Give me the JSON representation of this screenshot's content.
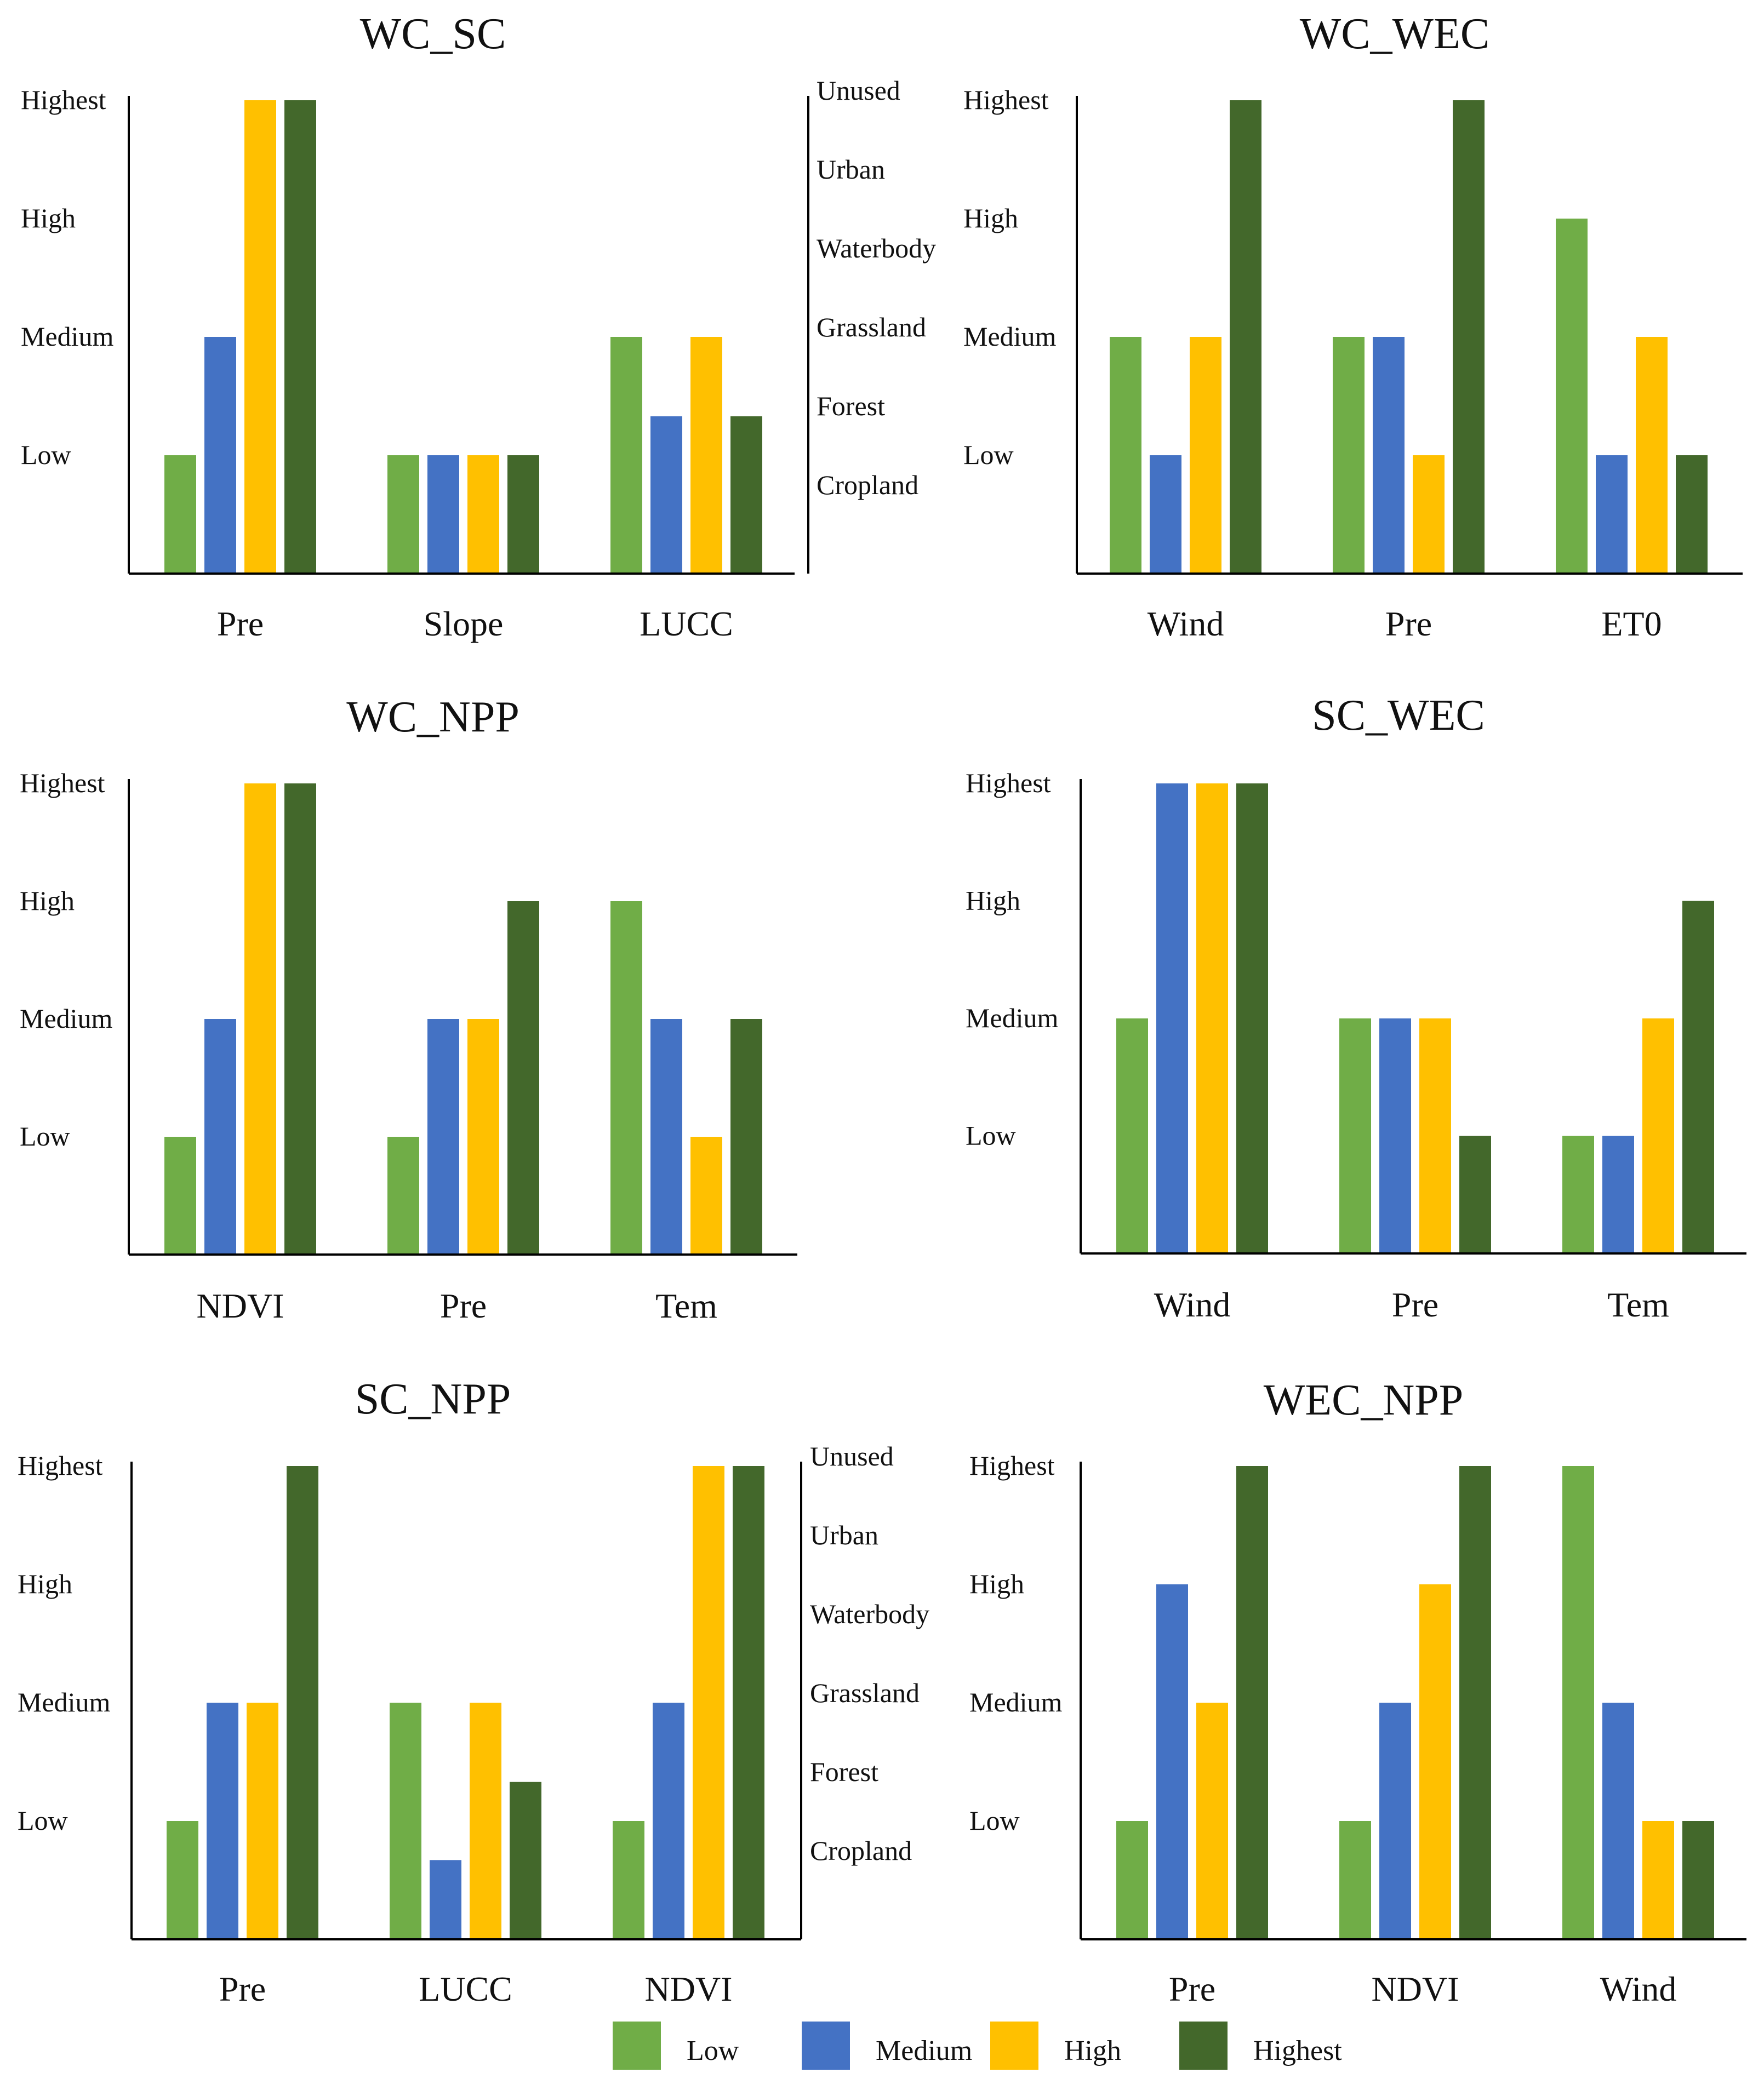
{
  "colors": {
    "Low": "#70ad47",
    "Medium": "#4472c4",
    "High": "#ffc000",
    "Highest": "#43682b",
    "axis": "#000000"
  },
  "legend": {
    "items": [
      "Low",
      "Medium",
      "High",
      "Highest"
    ]
  },
  "chart_data": [
    {
      "type": "bar",
      "title": "WC_SC",
      "categories": [
        "Pre",
        "Slope",
        "LUCC"
      ],
      "y_levels": [
        "Low",
        "Medium",
        "High",
        "Highest"
      ],
      "right_y_levels": [
        "Cropland",
        "Forest",
        "Grassland",
        "Waterbody",
        "Urban",
        "Unused"
      ],
      "ylim": [
        0,
        4
      ],
      "series": [
        {
          "name": "Low",
          "values": [
            1,
            1,
            2
          ]
        },
        {
          "name": "Medium",
          "values": [
            2,
            1,
            1.33
          ]
        },
        {
          "name": "High",
          "values": [
            4,
            1,
            2
          ]
        },
        {
          "name": "Highest",
          "values": [
            4,
            1,
            1.33
          ]
        }
      ]
    },
    {
      "type": "bar",
      "title": "WC_WEC",
      "categories": [
        "Wind",
        "Pre",
        "ET0"
      ],
      "y_levels": [
        "Low",
        "Medium",
        "High",
        "Highest"
      ],
      "ylim": [
        0,
        4
      ],
      "series": [
        {
          "name": "Low",
          "values": [
            2,
            2,
            3
          ]
        },
        {
          "name": "Medium",
          "values": [
            1,
            2,
            1
          ]
        },
        {
          "name": "High",
          "values": [
            2,
            1,
            2
          ]
        },
        {
          "name": "Highest",
          "values": [
            4,
            4,
            1
          ]
        }
      ]
    },
    {
      "type": "bar",
      "title": "WC_NPP",
      "categories": [
        "NDVI",
        "Pre",
        "Tem"
      ],
      "y_levels": [
        "Low",
        "Medium",
        "High",
        "Highest"
      ],
      "ylim": [
        0,
        4
      ],
      "series": [
        {
          "name": "Low",
          "values": [
            1,
            1,
            3
          ]
        },
        {
          "name": "Medium",
          "values": [
            2,
            2,
            2
          ]
        },
        {
          "name": "High",
          "values": [
            4,
            2,
            1
          ]
        },
        {
          "name": "Highest",
          "values": [
            4,
            3,
            2
          ]
        }
      ]
    },
    {
      "type": "bar",
      "title": "SC_WEC",
      "categories": [
        "Wind",
        "Pre",
        "Tem"
      ],
      "y_levels": [
        "Low",
        "Medium",
        "High",
        "Highest"
      ],
      "ylim": [
        0,
        4
      ],
      "series": [
        {
          "name": "Low",
          "values": [
            2,
            2,
            1
          ]
        },
        {
          "name": "Medium",
          "values": [
            4,
            2,
            1
          ]
        },
        {
          "name": "High",
          "values": [
            4,
            2,
            2
          ]
        },
        {
          "name": "Highest",
          "values": [
            4,
            1,
            3
          ]
        }
      ]
    },
    {
      "type": "bar",
      "title": "SC_NPP",
      "categories": [
        "Pre",
        "LUCC",
        "NDVI"
      ],
      "y_levels": [
        "Low",
        "Medium",
        "High",
        "Highest"
      ],
      "right_y_levels": [
        "Cropland",
        "Forest",
        "Grassland",
        "Waterbody",
        "Urban",
        "Unused"
      ],
      "ylim": [
        0,
        4
      ],
      "series": [
        {
          "name": "Low",
          "values": [
            1,
            2,
            1
          ]
        },
        {
          "name": "Medium",
          "values": [
            2,
            0.67,
            2
          ]
        },
        {
          "name": "High",
          "values": [
            2,
            2,
            4
          ]
        },
        {
          "name": "Highest",
          "values": [
            4,
            1.33,
            4
          ]
        }
      ]
    },
    {
      "type": "bar",
      "title": "WEC_NPP",
      "categories": [
        "Pre",
        "NDVI",
        "Wind"
      ],
      "y_levels": [
        "Low",
        "Medium",
        "High",
        "Highest"
      ],
      "ylim": [
        0,
        4
      ],
      "series": [
        {
          "name": "Low",
          "values": [
            1,
            1,
            4
          ]
        },
        {
          "name": "Medium",
          "values": [
            3,
            2,
            2
          ]
        },
        {
          "name": "High",
          "values": [
            2,
            3,
            1
          ]
        },
        {
          "name": "Highest",
          "values": [
            4,
            4,
            1
          ]
        }
      ]
    }
  ]
}
